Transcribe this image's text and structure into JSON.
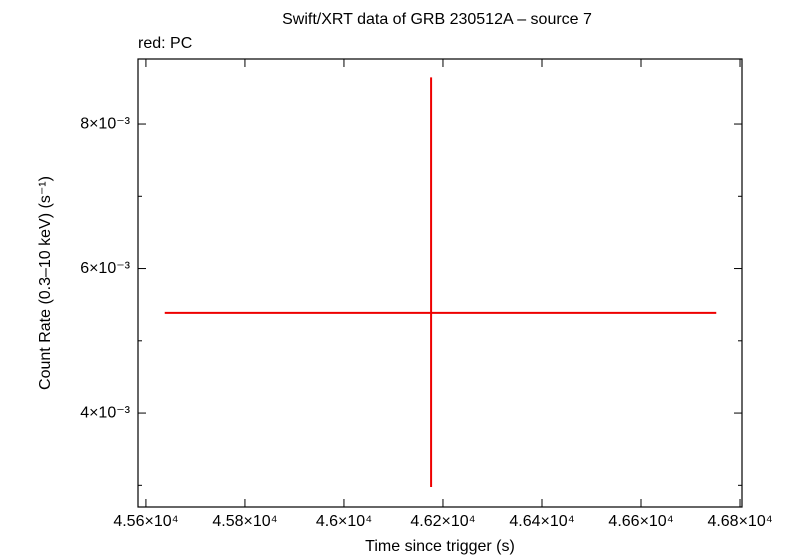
{
  "chart_data": {
    "type": "errorbar",
    "title": "Swift/XRT data of GRB 230512A – source 7",
    "subtitle": "red: PC",
    "x_label": "Time since trigger (s)",
    "y_label": "Count Rate (0.3–10 keV) (s⁻¹)",
    "series": [
      {
        "name": "PC",
        "color": "#ee0000",
        "x": [
          46176
        ],
        "xerr_minus": [
          538
        ],
        "xerr_plus": [
          576
        ],
        "y": [
          0.005386
        ],
        "yerr_minus": [
          0.00241
        ],
        "yerr_plus": [
          0.00326
        ]
      }
    ],
    "xlim": [
      45584,
      46804
    ],
    "xticks": [
      {
        "value": 45600,
        "label": "4.56×10⁴"
      },
      {
        "value": 45800,
        "label": "4.58×10⁴"
      },
      {
        "value": 46000,
        "label": "4.6×10⁴"
      },
      {
        "value": 46200,
        "label": "4.62×10⁴"
      },
      {
        "value": 46400,
        "label": "4.64×10⁴"
      },
      {
        "value": 46600,
        "label": "4.66×10⁴"
      },
      {
        "value": 46800,
        "label": "4.68×10⁴"
      }
    ],
    "ylim": [
      0.0027,
      0.0089
    ],
    "yticks": [
      {
        "value": 0.004,
        "label": "4×10⁻³"
      },
      {
        "value": 0.006,
        "label": "6×10⁻³"
      },
      {
        "value": 0.008,
        "label": "8×10⁻³"
      }
    ],
    "yminor": [
      0.003,
      0.005,
      0.007
    ]
  }
}
